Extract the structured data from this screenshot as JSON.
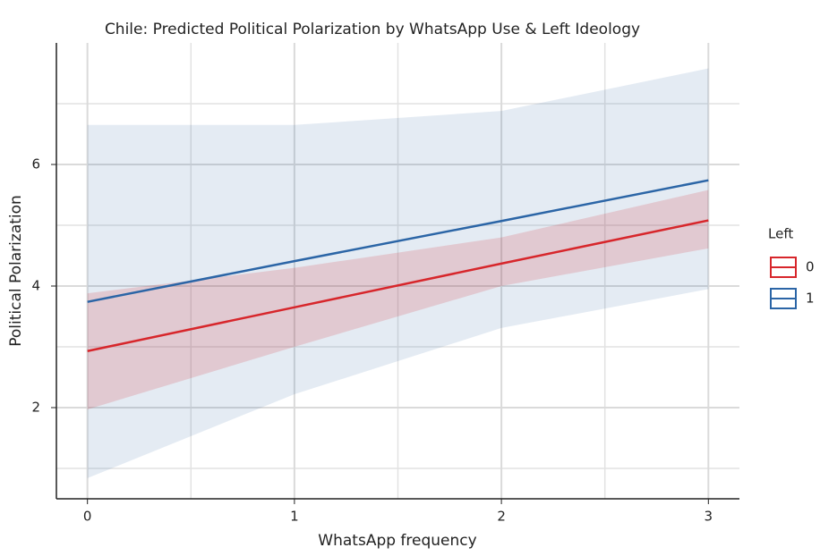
{
  "chart_data": {
    "type": "line",
    "title": "Chile: Predicted Political Polarization by WhatsApp Use & Left Ideology",
    "x_label": "WhatsApp frequency",
    "y_label": "Political Polarization",
    "legend_title": "Left",
    "legend": "right",
    "grid": true,
    "x": [
      0,
      1,
      2,
      3
    ],
    "xlim": [
      -0.15,
      3.15
    ],
    "ylim": [
      0.5,
      8.0
    ],
    "xticks": [
      0,
      1,
      2,
      3
    ],
    "yticks": [
      2,
      4,
      6
    ],
    "minor_xticks": [
      0.5,
      1.5,
      2.5
    ],
    "minor_yticks": [
      1,
      3,
      5,
      7
    ],
    "series": [
      {
        "name": "0",
        "color": "#d7262b",
        "values": [
          2.93,
          3.65,
          4.37,
          5.08
        ],
        "lower": [
          1.97,
          3.0,
          4.0,
          4.62
        ],
        "upper": [
          3.88,
          4.3,
          4.8,
          5.58
        ]
      },
      {
        "name": "1",
        "color": "#2b65a6",
        "values": [
          3.74,
          4.41,
          5.07,
          5.74
        ],
        "lower": [
          0.84,
          2.22,
          3.31,
          3.95
        ],
        "upper": [
          6.65,
          6.65,
          6.88,
          7.58
        ]
      }
    ]
  }
}
